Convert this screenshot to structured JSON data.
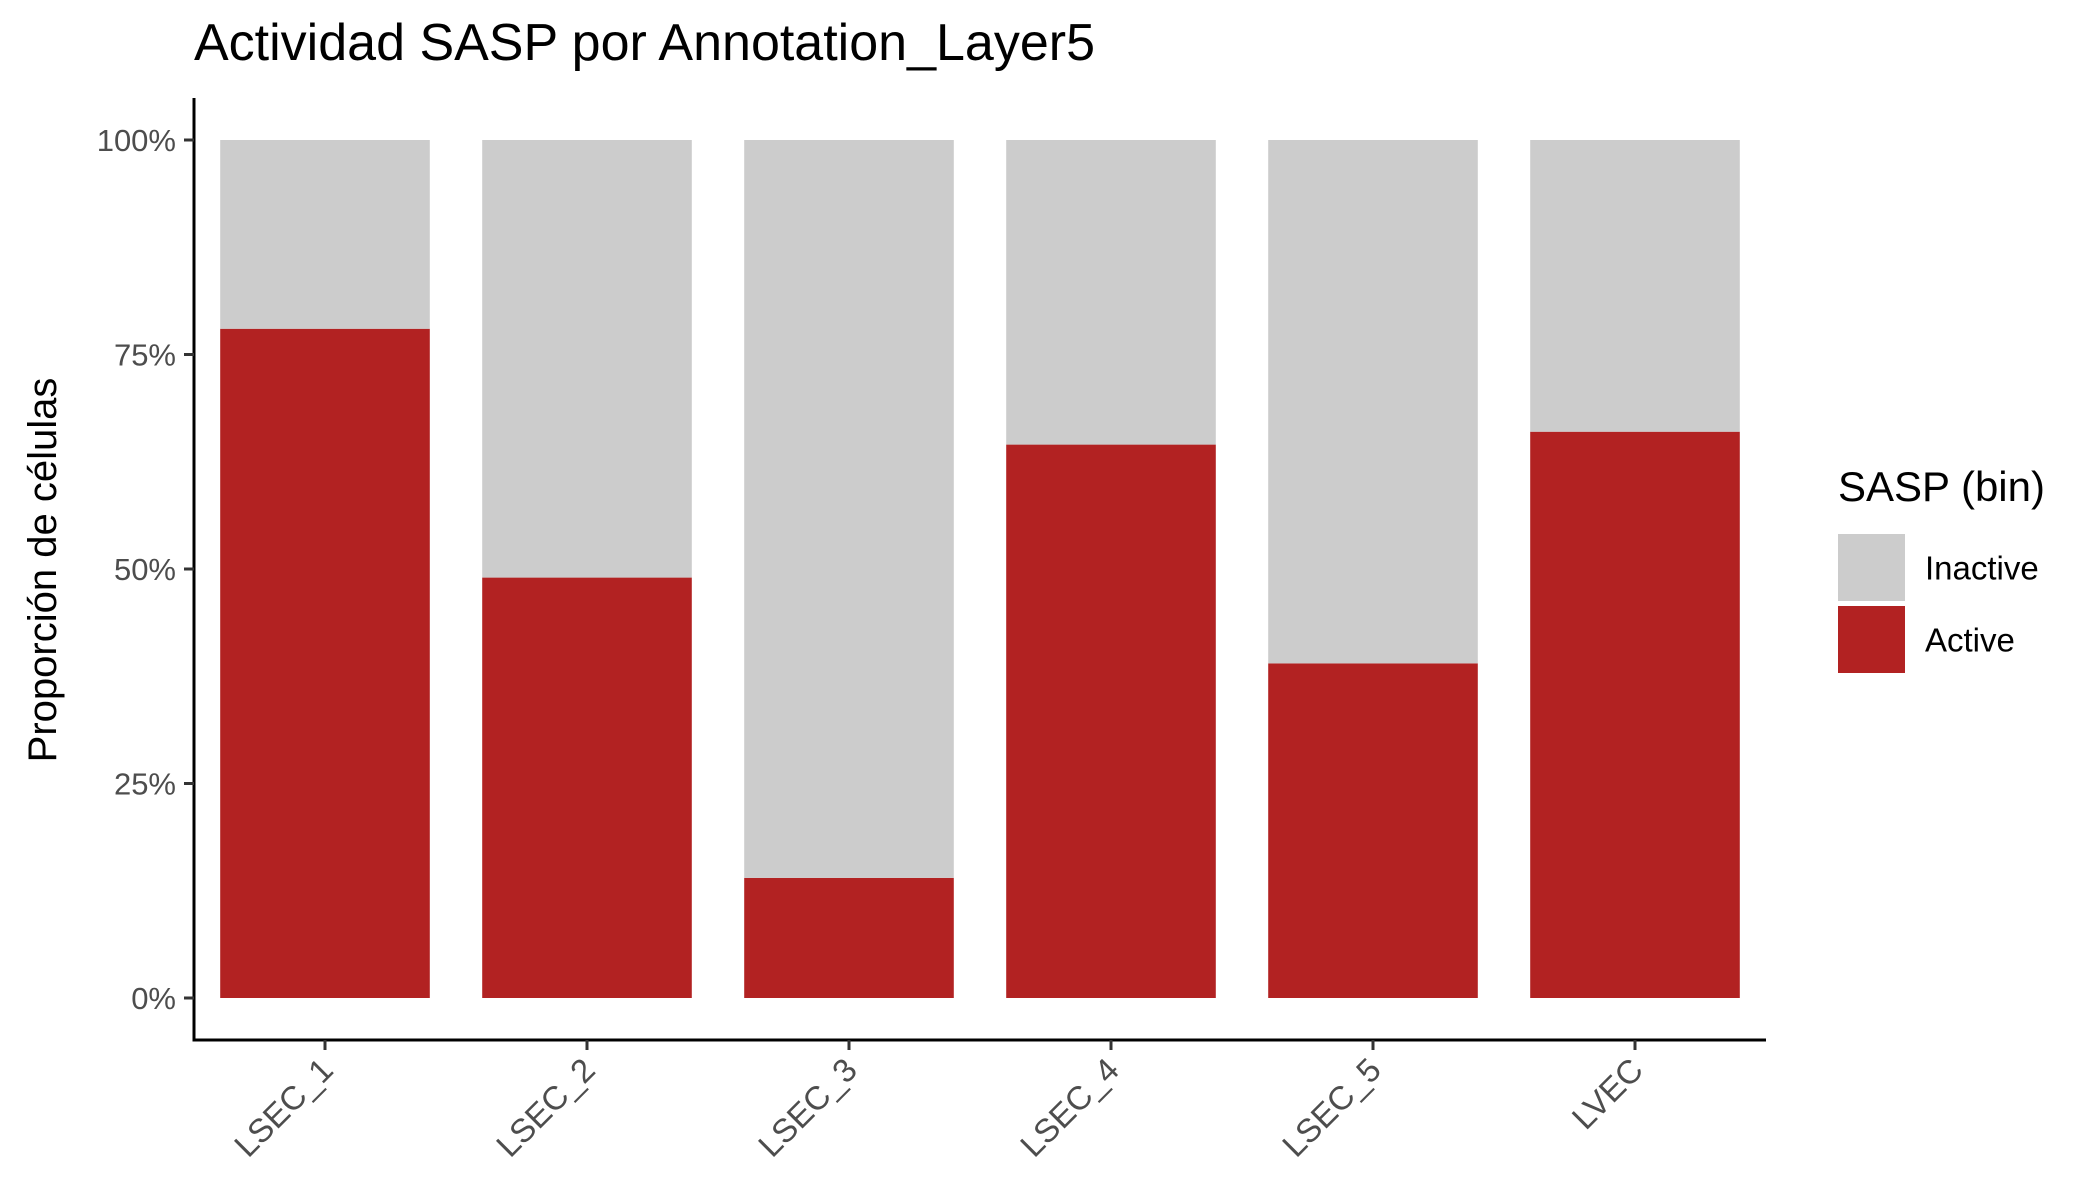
{
  "chart_data": {
    "type": "bar",
    "stacked": true,
    "percent": true,
    "title": "Actividad SASP por Annotation_Layer5",
    "xlabel": "",
    "ylabel": "Proporción de células",
    "ylim": [
      0,
      1
    ],
    "y_ticks": [
      0,
      0.25,
      0.5,
      0.75,
      1
    ],
    "y_tick_labels": [
      "0%",
      "25%",
      "50%",
      "75%",
      "100%"
    ],
    "categories": [
      "LSEC_1",
      "LSEC_2",
      "LSEC_3",
      "LSEC_4",
      "LSEC_5",
      "LVEC"
    ],
    "series": [
      {
        "name": "Active",
        "color": "#b22222",
        "values": [
          0.78,
          0.49,
          0.14,
          0.645,
          0.39,
          0.66
        ]
      },
      {
        "name": "Inactive",
        "color": "#cccccc",
        "values": [
          0.22,
          0.51,
          0.86,
          0.355,
          0.61,
          0.34
        ]
      }
    ],
    "legend": {
      "title": "SASP (bin)",
      "position": "right",
      "entries": [
        {
          "label": "Inactive",
          "color": "#cccccc"
        },
        {
          "label": "Active",
          "color": "#b22222"
        }
      ]
    },
    "grid": false
  }
}
